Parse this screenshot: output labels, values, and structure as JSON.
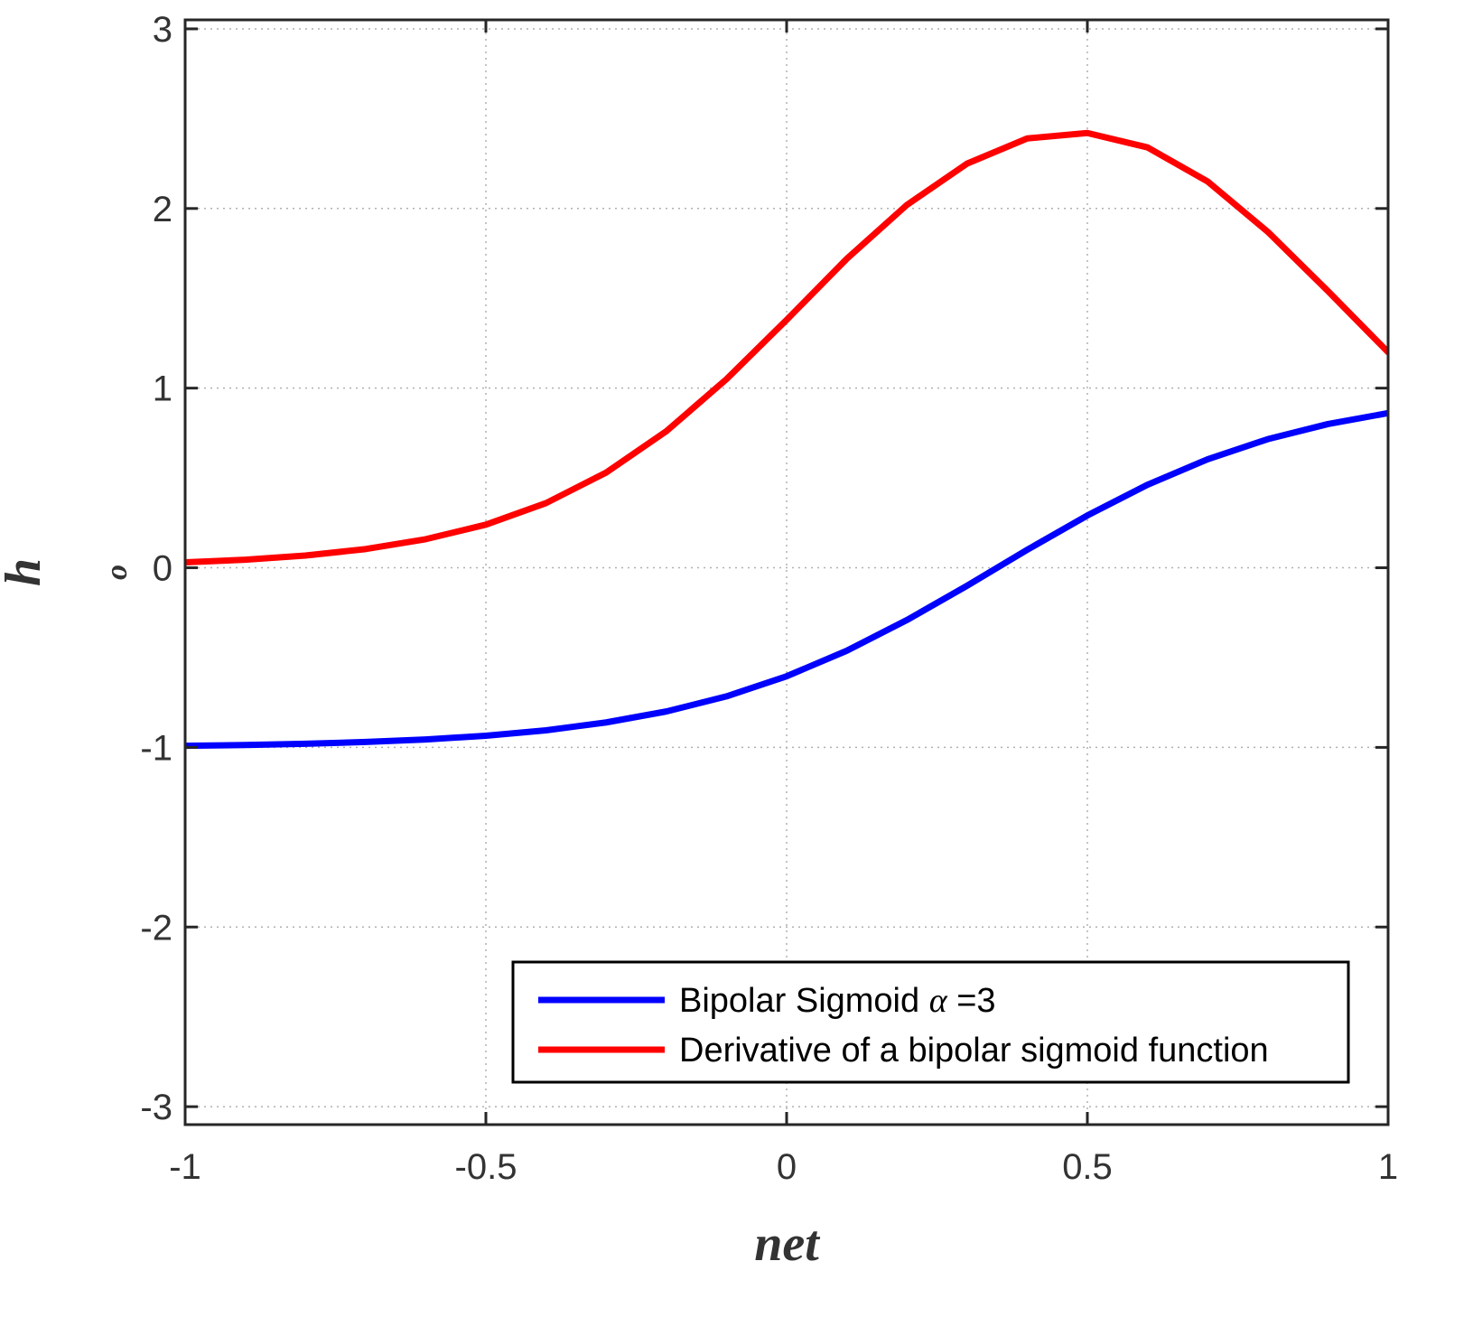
{
  "chart_data": {
    "type": "line",
    "xlabel": "net",
    "ylabel": "h",
    "ylabel_sub": "o",
    "xlim": [
      -1,
      1
    ],
    "ylim": [
      -3.1,
      3.05
    ],
    "xticks": [
      -1,
      -0.5,
      0,
      0.5,
      1
    ],
    "xtick_labels": [
      "-1",
      "-0.5",
      "0",
      "0.5",
      "1"
    ],
    "yticks": [
      -3,
      -2,
      -1,
      0,
      1,
      2,
      3
    ],
    "ytick_labels": [
      "-3",
      "-2",
      "-1",
      "0",
      "1",
      "2",
      "3"
    ],
    "grid": true,
    "legend_position": "bottom-right",
    "series": [
      {
        "name": "Bipolar Sigmoid",
        "name_symbol": "α",
        "name_suffix": " =3",
        "color": "#0000ff",
        "x": [
          -1,
          -0.9,
          -0.8,
          -0.7,
          -0.6,
          -0.5,
          -0.4,
          -0.3,
          -0.2,
          -0.1,
          0,
          0.1,
          0.2,
          0.3,
          0.4,
          0.5,
          0.6,
          0.7,
          0.8,
          0.9,
          1
        ],
        "y": [
          -0.991,
          -0.987,
          -0.98,
          -0.97,
          -0.956,
          -0.935,
          -0.905,
          -0.861,
          -0.8,
          -0.716,
          -0.604,
          -0.462,
          -0.291,
          -0.1,
          0.1,
          0.291,
          0.462,
          0.604,
          0.716,
          0.8,
          0.861
        ]
      },
      {
        "name": "Derivative of a bipolar sigmoid function",
        "color": "#ff0000",
        "x": [
          -1,
          -0.9,
          -0.8,
          -0.7,
          -0.6,
          -0.5,
          -0.4,
          -0.3,
          -0.2,
          -0.1,
          0,
          0.1,
          0.2,
          0.3,
          0.4,
          0.5,
          0.6,
          0.7,
          0.8,
          0.9,
          1
        ],
        "y": [
          0.03,
          0.045,
          0.068,
          0.104,
          0.159,
          0.24,
          0.36,
          0.53,
          0.76,
          1.05,
          1.38,
          1.72,
          2.02,
          2.25,
          2.39,
          2.42,
          2.34,
          2.15,
          1.87,
          1.54,
          1.2
        ]
      }
    ]
  }
}
